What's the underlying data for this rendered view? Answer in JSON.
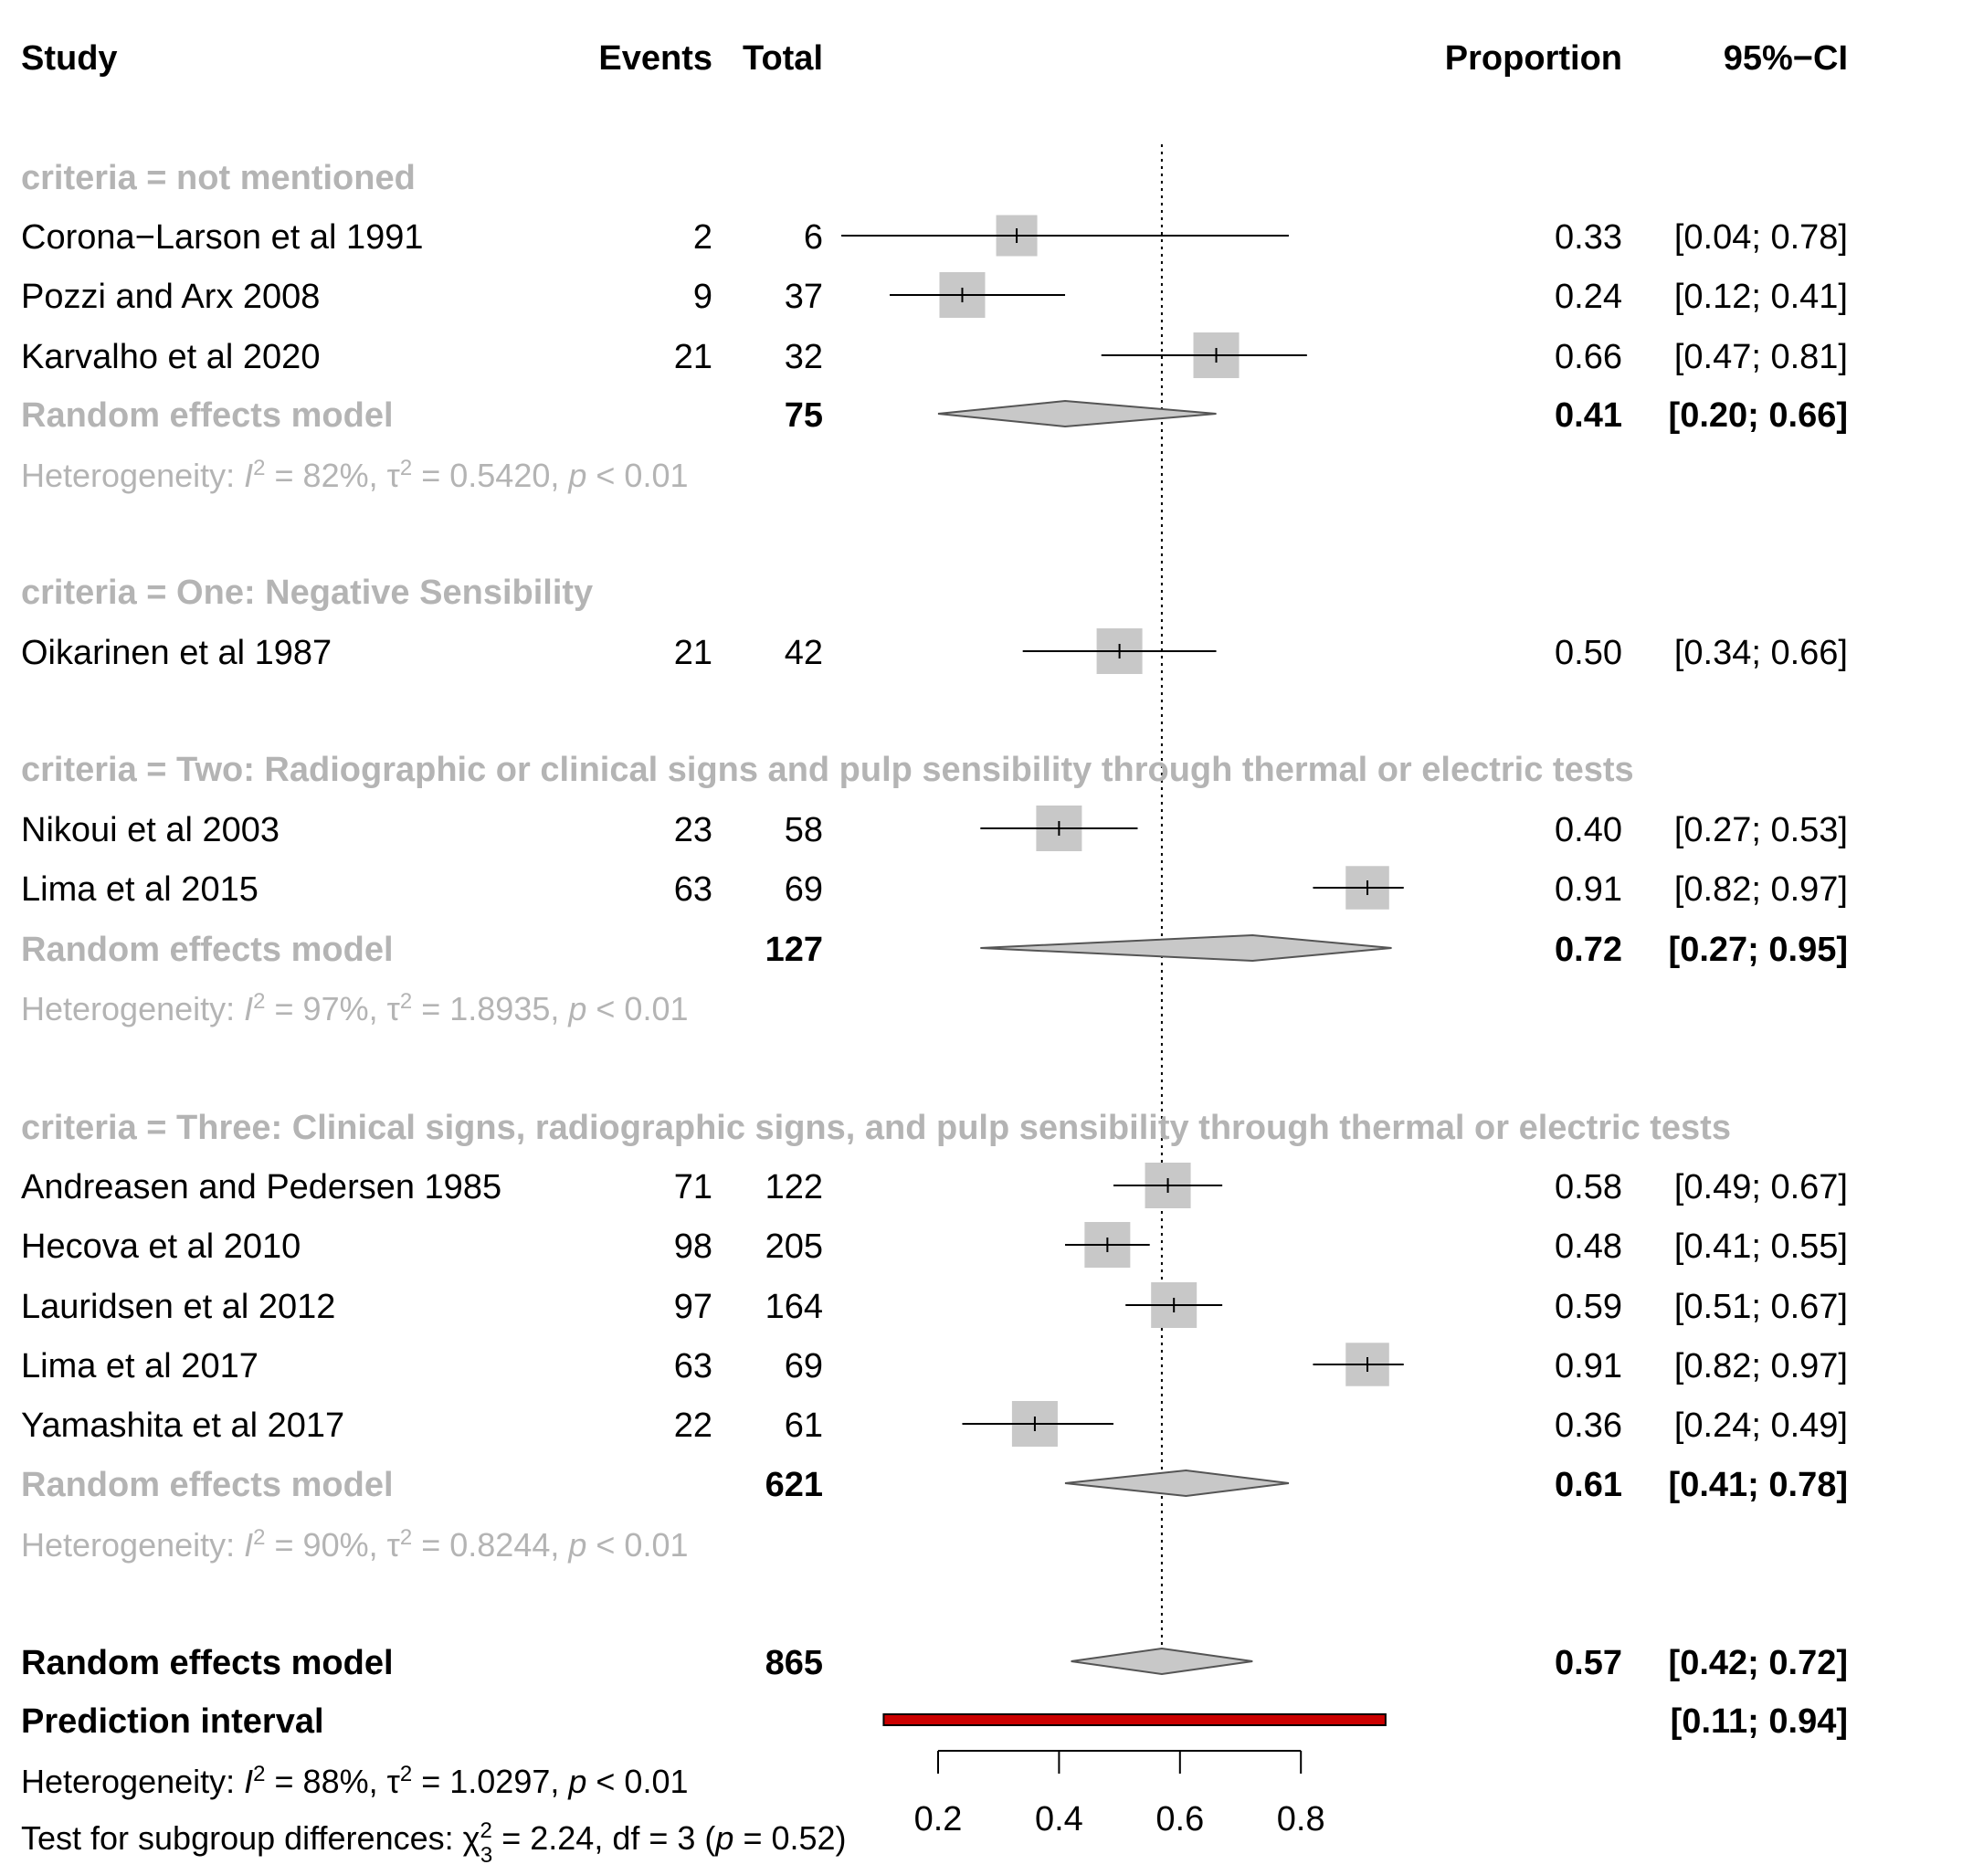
{
  "columns": {
    "study": "Study",
    "events": "Events",
    "total": "Total",
    "proportion": "Proportion",
    "ci": "95%−CI"
  },
  "chart_data": {
    "type": "forest",
    "x_ticks": [
      "0.2",
      "0.4",
      "0.6",
      "0.8"
    ],
    "x_tick_values": [
      0.2,
      0.4,
      0.6,
      0.8
    ],
    "reference_line": 0.57,
    "colors": {
      "square": "#c8c8c8",
      "diamond": "#c8c8c8",
      "prediction": "#cc0000",
      "subgroup_text": "#b4b4b4"
    },
    "groups": [
      {
        "label": "criteria = not mentioned",
        "studies": [
          {
            "study": "Corona−Larson et al 1991",
            "events": "2",
            "total": "6",
            "prop": 0.33,
            "lo": 0.04,
            "hi": 0.78,
            "weight": 0.9,
            "prop_text": "0.33",
            "ci_text": "[0.04; 0.78]"
          },
          {
            "study": "Pozzi and Arx 2008",
            "events": "9",
            "total": "37",
            "prop": 0.24,
            "lo": 0.12,
            "hi": 0.41,
            "weight": 1.0,
            "prop_text": "0.24",
            "ci_text": "[0.12; 0.41]"
          },
          {
            "study": "Karvalho et al 2020",
            "events": "21",
            "total": "32",
            "prop": 0.66,
            "lo": 0.47,
            "hi": 0.81,
            "weight": 1.0,
            "prop_text": "0.66",
            "ci_text": "[0.47; 0.81]"
          }
        ],
        "model": {
          "label": "Random effects model",
          "total": "75",
          "prop": 0.41,
          "lo": 0.2,
          "hi": 0.66,
          "prop_text": "0.41",
          "ci_text": "[0.20; 0.66]"
        },
        "het": {
          "pre": "Heterogeneity: ",
          "i2": "I",
          "i2_sup": "2",
          "i2_val": " = 82%, ",
          "tau": "τ",
          "tau_sup": "2",
          "tau_val": " = 0.5420, ",
          "p": "p",
          "p_val": " < 0.01"
        }
      },
      {
        "label": "criteria = One: Negative Sensibility",
        "studies": [
          {
            "study": "Oikarinen et al 1987",
            "events": "21",
            "total": "42",
            "prop": 0.5,
            "lo": 0.34,
            "hi": 0.66,
            "weight": 1.0,
            "prop_text": "0.50",
            "ci_text": "[0.34; 0.66]"
          }
        ]
      },
      {
        "label": "criteria = Two: Radiographic or clinical signs and pulp sensibility through thermal or electric tests",
        "studies": [
          {
            "study": "Nikoui et al 2003",
            "events": "23",
            "total": "58",
            "prop": 0.4,
            "lo": 0.27,
            "hi": 0.53,
            "weight": 1.0,
            "prop_text": "0.40",
            "ci_text": "[0.27; 0.53]"
          },
          {
            "study": "Lima et al 2015",
            "events": "63",
            "total": "69",
            "prop": 0.91,
            "lo": 0.82,
            "hi": 0.97,
            "weight": 0.95,
            "prop_text": "0.91",
            "ci_text": "[0.82; 0.97]"
          }
        ],
        "model": {
          "label": "Random effects model",
          "total": "127",
          "prop": 0.72,
          "lo": 0.27,
          "hi": 0.95,
          "prop_text": "0.72",
          "ci_text": "[0.27; 0.95]"
        },
        "het": {
          "pre": "Heterogeneity: ",
          "i2": "I",
          "i2_sup": "2",
          "i2_val": " = 97%, ",
          "tau": "τ",
          "tau_sup": "2",
          "tau_val": " = 1.8935, ",
          "p": "p",
          "p_val": " < 0.01"
        }
      },
      {
        "label": "criteria = Three: Clinical signs, radiographic signs, and pulp sensibility through thermal or electric tests",
        "studies": [
          {
            "study": "Andreasen and Pedersen 1985",
            "events": "71",
            "total": "122",
            "prop": 0.58,
            "lo": 0.49,
            "hi": 0.67,
            "weight": 1.0,
            "prop_text": "0.58",
            "ci_text": "[0.49; 0.67]"
          },
          {
            "study": "Hecova et al 2010",
            "events": "98",
            "total": "205",
            "prop": 0.48,
            "lo": 0.41,
            "hi": 0.55,
            "weight": 1.0,
            "prop_text": "0.48",
            "ci_text": "[0.41; 0.55]"
          },
          {
            "study": "Lauridsen et al 2012",
            "events": "97",
            "total": "164",
            "prop": 0.59,
            "lo": 0.51,
            "hi": 0.67,
            "weight": 1.0,
            "prop_text": "0.59",
            "ci_text": "[0.51; 0.67]"
          },
          {
            "study": "Lima et al 2017",
            "events": "63",
            "total": "69",
            "prop": 0.91,
            "lo": 0.82,
            "hi": 0.97,
            "weight": 0.95,
            "prop_text": "0.91",
            "ci_text": "[0.82; 0.97]"
          },
          {
            "study": "Yamashita et al 2017",
            "events": "22",
            "total": "61",
            "prop": 0.36,
            "lo": 0.24,
            "hi": 0.49,
            "weight": 1.0,
            "prop_text": "0.36",
            "ci_text": "[0.24; 0.49]"
          }
        ],
        "model": {
          "label": "Random effects model",
          "total": "621",
          "prop": 0.61,
          "lo": 0.41,
          "hi": 0.78,
          "prop_text": "0.61",
          "ci_text": "[0.41; 0.78]"
        },
        "het": {
          "pre": "Heterogeneity: ",
          "i2": "I",
          "i2_sup": "2",
          "i2_val": " = 90%, ",
          "tau": "τ",
          "tau_sup": "2",
          "tau_val": " = 0.8244, ",
          "p": "p",
          "p_val": " < 0.01"
        }
      }
    ],
    "overall": {
      "label": "Random effects model",
      "total": "865",
      "prop": 0.57,
      "lo": 0.42,
      "hi": 0.72,
      "prop_text": "0.57",
      "ci_text": "[0.42; 0.72]"
    },
    "prediction": {
      "label": "Prediction interval",
      "lo": 0.11,
      "hi": 0.94,
      "ci_text": "[0.11; 0.94]"
    },
    "overall_het": {
      "pre": "Heterogeneity: ",
      "i2": "I",
      "i2_sup": "2",
      "i2_val": " = 88%, ",
      "tau": "τ",
      "tau_sup": "2",
      "tau_val": " = 1.0297, ",
      "p": "p",
      "p_val": " < 0.01"
    },
    "subgroup_test": {
      "pre": "Test for subgroup differences: ",
      "chi": "χ",
      "chi_sub": "3",
      "chi_sup": "2",
      "chi_val": " = 2.24, df = 3 (",
      "p": "p",
      "p_val": " = 0.52)"
    }
  }
}
